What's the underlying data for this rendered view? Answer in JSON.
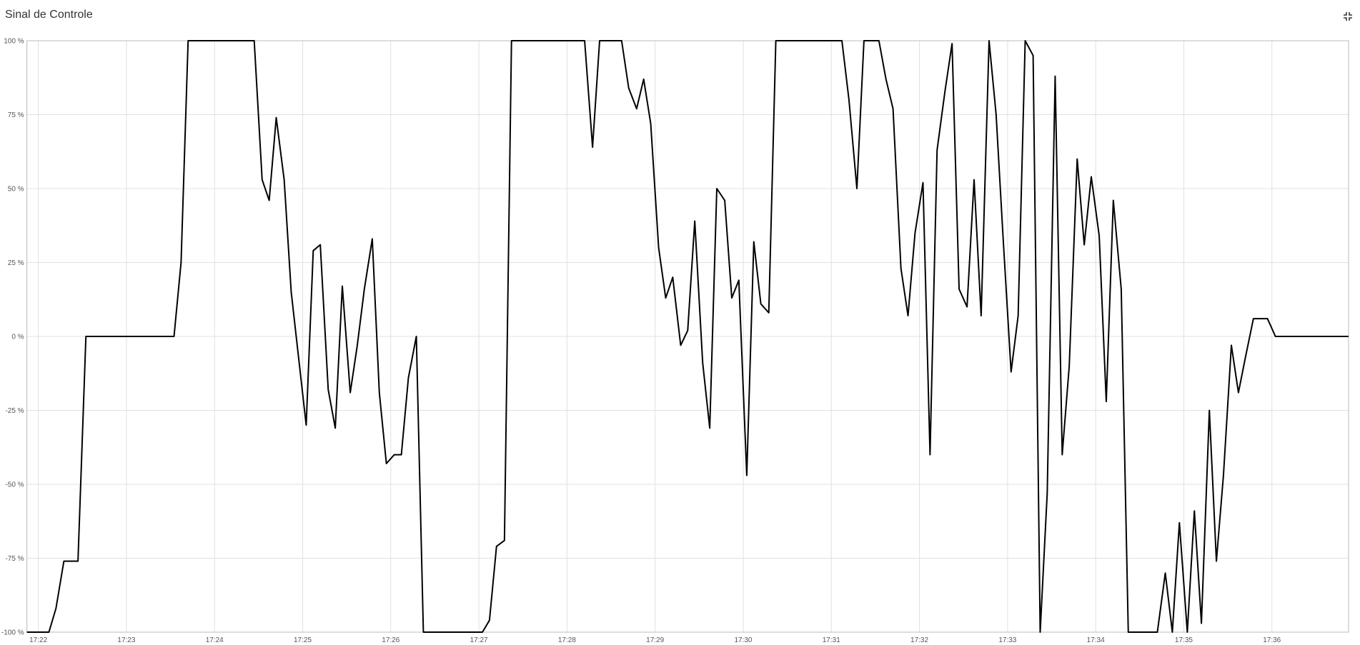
{
  "chart_data": {
    "type": "line",
    "title": "Sinal de Controle",
    "x": [
      1041.87,
      1042.12,
      1042.2,
      1042.29,
      1042.45,
      1042.54,
      1043.54,
      1043.62,
      1043.7,
      1044.45,
      1044.54,
      1044.62,
      1044.7,
      1044.79,
      1044.87,
      1045.04,
      1045.12,
      1045.2,
      1045.29,
      1045.37,
      1045.45,
      1045.54,
      1045.62,
      1045.7,
      1045.79,
      1045.87,
      1045.95,
      1046.04,
      1046.12,
      1046.2,
      1046.29,
      1046.37,
      1047.04,
      1047.12,
      1047.2,
      1047.29,
      1047.37,
      1048.2,
      1048.29,
      1048.37,
      1048.62,
      1048.7,
      1048.79,
      1048.87,
      1048.95,
      1049.04,
      1049.12,
      1049.2,
      1049.29,
      1049.37,
      1049.45,
      1049.54,
      1049.62,
      1049.7,
      1049.79,
      1049.87,
      1049.95,
      1050.04,
      1050.12,
      1050.2,
      1050.29,
      1050.37,
      1051.12,
      1051.2,
      1051.29,
      1051.37,
      1051.54,
      1051.62,
      1051.7,
      1051.79,
      1051.87,
      1051.95,
      1052.04,
      1052.12,
      1052.2,
      1052.29,
      1052.37,
      1052.45,
      1052.54,
      1052.62,
      1052.7,
      1052.79,
      1052.87,
      1052.95,
      1053.04,
      1053.12,
      1053.2,
      1053.29,
      1053.37,
      1053.45,
      1053.54,
      1053.62,
      1053.7,
      1053.79,
      1053.87,
      1053.95,
      1054.04,
      1054.12,
      1054.2,
      1054.29,
      1054.37,
      1054.7,
      1054.79,
      1054.87,
      1054.95,
      1055.04,
      1055.12,
      1055.2,
      1055.29,
      1055.37,
      1055.45,
      1055.54,
      1055.62,
      1055.7,
      1055.79,
      1055.95,
      1056.04,
      1056.87
    ],
    "series": [
      {
        "color": "#000000",
        "values": [
          -100,
          -100,
          -92,
          -76,
          -76,
          0,
          0,
          25,
          100,
          100,
          53,
          46,
          74,
          53,
          15,
          -30,
          29,
          31,
          -18,
          -31,
          17,
          -19,
          -3,
          16,
          33,
          -19,
          -43,
          -40,
          -40,
          -14,
          0,
          -100,
          -100,
          -96,
          -71,
          -69,
          100,
          100,
          64,
          100,
          100,
          84,
          77,
          87,
          72,
          30,
          13,
          20,
          -3,
          2,
          39,
          -9,
          -31,
          50,
          46,
          13,
          19,
          -47,
          32,
          11,
          8,
          100,
          100,
          80,
          50,
          100,
          100,
          87,
          77,
          23,
          7,
          35,
          52,
          -40,
          63,
          83,
          99,
          16,
          10,
          53,
          7,
          100,
          75,
          33,
          -12,
          7,
          100,
          95,
          -100,
          -53,
          88,
          -40,
          -10,
          60,
          31,
          54,
          34,
          -22,
          46,
          16,
          -100,
          -100,
          -80,
          -100,
          -63,
          -100,
          -59,
          -97,
          -25,
          -76,
          -47,
          -3,
          -19,
          -7,
          6,
          6,
          0,
          0
        ]
      }
    ],
    "xlim": [
      1041.87,
      1056.87
    ],
    "xticks": [
      {
        "value": 1042,
        "label": "17:22"
      },
      {
        "value": 1043,
        "label": "17:23"
      },
      {
        "value": 1044,
        "label": "17:24"
      },
      {
        "value": 1045,
        "label": "17:25"
      },
      {
        "value": 1046,
        "label": "17:26"
      },
      {
        "value": 1047,
        "label": "17:27"
      },
      {
        "value": 1048,
        "label": "17:28"
      },
      {
        "value": 1049,
        "label": "17:29"
      },
      {
        "value": 1050,
        "label": "17:30"
      },
      {
        "value": 1051,
        "label": "17:31"
      },
      {
        "value": 1052,
        "label": "17:32"
      },
      {
        "value": 1053,
        "label": "17:33"
      },
      {
        "value": 1054,
        "label": "17:34"
      },
      {
        "value": 1055,
        "label": "17:35"
      },
      {
        "value": 1056,
        "label": "17:36"
      }
    ],
    "ylim": [
      -100,
      100
    ],
    "yticks": [
      {
        "value": -100,
        "label": "-100 %"
      },
      {
        "value": -75,
        "label": "-75 %"
      },
      {
        "value": -50,
        "label": "-50 %"
      },
      {
        "value": -25,
        "label": "-25 %"
      },
      {
        "value": 0,
        "label": "0 %"
      },
      {
        "value": 25,
        "label": "25 %"
      },
      {
        "value": 50,
        "label": "50 %"
      },
      {
        "value": 75,
        "label": "75 %"
      },
      {
        "value": 100,
        "label": "100 %"
      }
    ],
    "grid": true
  }
}
